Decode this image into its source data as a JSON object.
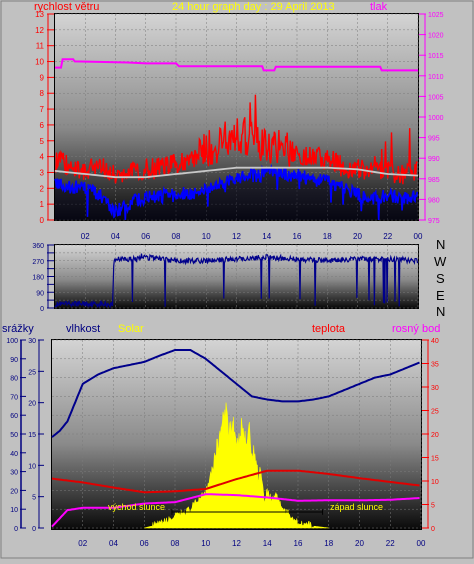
{
  "header": {
    "title": "24 hour graph day : 29 April 2013",
    "left_label": "rychlost větru",
    "right_label": "tlak"
  },
  "colors": {
    "wind_speed": "#ff0000",
    "wind_avg": "#c8c8c8",
    "wind_low": "#0000ff",
    "pressure": "#ff00ff",
    "direction": "#00008b",
    "humidity": "#00008b",
    "solar": "#ffff00",
    "temperature": "#e00000",
    "dew_point": "#ff00ff",
    "rain": "#000080",
    "title": "#ffff00"
  },
  "wind_direction_labels": [
    "N",
    "W",
    "S",
    "E",
    "N"
  ],
  "bottom_panel": {
    "labels": {
      "rain": "srážky",
      "humidity": "vlhkost",
      "solar": "Solar",
      "temperature": "teplota",
      "dew_point": "rosný bod"
    },
    "sunrise_label": "východ slunce",
    "sunset_label": "západ slunce"
  },
  "chart_data": [
    {
      "type": "line",
      "title": "24 hour graph day : 29 April 2013",
      "x_ticks": [
        "02",
        "04",
        "06",
        "08",
        "10",
        "12",
        "14",
        "16",
        "18",
        "20",
        "22",
        "00"
      ],
      "left_axis": {
        "label": "rychlost větru",
        "ticks": [
          0,
          1,
          2,
          3,
          4,
          5,
          6,
          7,
          8,
          9,
          10,
          11,
          12,
          13
        ],
        "ylim": [
          0,
          13
        ]
      },
      "right_axis": {
        "label": "tlak",
        "ticks": [
          975,
          980,
          985,
          990,
          995,
          1000,
          1005,
          1010,
          1015,
          1020,
          1025
        ],
        "ylim": [
          975,
          1025
        ]
      },
      "series": [
        {
          "name": "wind gust",
          "axis": "left",
          "hours": [
            0,
            1,
            2,
            3,
            4,
            5,
            6,
            7,
            8,
            9,
            10,
            11,
            12,
            13,
            14,
            15,
            16,
            17,
            18,
            19,
            20,
            21,
            22,
            23,
            24
          ],
          "values": [
            3.5,
            3.2,
            3.0,
            3.3,
            2.6,
            2.9,
            3.0,
            3.1,
            3.3,
            3.5,
            4.0,
            4.6,
            5.2,
            4.7,
            4.4,
            4.2,
            4.0,
            3.8,
            3.6,
            3.2,
            3.0,
            2.9,
            2.8,
            2.7,
            3.0
          ]
        },
        {
          "name": "wind average",
          "axis": "left",
          "hours": [
            0,
            2,
            4,
            6,
            8,
            10,
            12,
            14,
            16,
            18,
            20,
            22,
            24
          ],
          "values": [
            3.1,
            2.9,
            2.7,
            2.7,
            2.9,
            3.1,
            3.3,
            3.3,
            3.3,
            3.3,
            3.2,
            2.9,
            2.8
          ]
        },
        {
          "name": "wind low",
          "axis": "left",
          "hours": [
            0,
            1,
            2,
            3,
            4,
            5,
            6,
            7,
            8,
            9,
            10,
            11,
            12,
            13,
            14,
            15,
            16,
            17,
            18,
            19,
            20,
            21,
            22,
            23,
            24
          ],
          "values": [
            2.2,
            2.1,
            2.0,
            1.6,
            0.5,
            1.1,
            1.4,
            1.5,
            1.6,
            1.7,
            2.0,
            2.4,
            2.7,
            2.8,
            2.9,
            2.9,
            2.8,
            2.6,
            2.4,
            2.0,
            1.6,
            1.4,
            1.5,
            1.4,
            1.5
          ]
        },
        {
          "name": "pressure",
          "axis": "right",
          "hours": [
            0,
            0.4,
            0.5,
            1.2,
            1.3,
            5,
            6,
            8,
            8.2,
            13.7,
            13.8,
            14.5,
            14.6,
            21.5,
            21.6,
            24
          ],
          "values": [
            1012,
            1012,
            1014,
            1014,
            1013.5,
            1013.2,
            1013,
            1013,
            1012.3,
            1012.3,
            1011.3,
            1011.3,
            1012.2,
            1012.2,
            1011.3,
            1011.3
          ]
        }
      ]
    },
    {
      "type": "line",
      "title": "",
      "x_ticks": [
        "02",
        "04",
        "06",
        "08",
        "10",
        "12",
        "14",
        "16",
        "18",
        "20",
        "22",
        "00"
      ],
      "y_ticks": [
        0,
        45,
        90,
        135,
        180,
        225,
        270,
        315,
        360
      ],
      "ylim": [
        0,
        360
      ],
      "series": [
        {
          "name": "wind direction",
          "hours": [
            0,
            2,
            3.8,
            3.9,
            5.6,
            5.7,
            6,
            8,
            10,
            12,
            14,
            16,
            18,
            20,
            22,
            24
          ],
          "values": [
            20,
            25,
            20,
            280,
            280,
            300,
            290,
            270,
            270,
            280,
            290,
            280,
            270,
            280,
            280,
            270
          ]
        }
      ]
    },
    {
      "type": "line",
      "title": "",
      "x_ticks": [
        "02",
        "04",
        "06",
        "08",
        "10",
        "12",
        "14",
        "16",
        "18",
        "20",
        "22",
        "00"
      ],
      "rain_axis": {
        "label": "srážky",
        "ticks": [
          0,
          10,
          20,
          30,
          40,
          50,
          60,
          70,
          80,
          90,
          100
        ],
        "ylim": [
          0,
          100
        ]
      },
      "humidity_axis": {
        "label": "vlhkost",
        "ticks": [
          0,
          5,
          10,
          15,
          20,
          25,
          30
        ],
        "ylim": [
          0,
          30
        ]
      },
      "temperature_axis": {
        "label": "teplota",
        "ticks": [
          0,
          5,
          10,
          15,
          20,
          25,
          30,
          35,
          40
        ],
        "ylim": [
          0,
          40
        ]
      },
      "series": [
        {
          "name": "humidity",
          "axis": "humidity",
          "hours": [
            0,
            0.5,
            1,
            2,
            3,
            4,
            5,
            6,
            7,
            8,
            9,
            10,
            11,
            12,
            13,
            14,
            15,
            16,
            17,
            18,
            19,
            20,
            21,
            22,
            23,
            24
          ],
          "values": [
            14.5,
            15.5,
            17,
            23,
            24.5,
            25.5,
            26,
            26.5,
            27.5,
            28.4,
            28.4,
            27,
            25,
            23,
            21,
            20.5,
            20.2,
            20.2,
            20.5,
            21,
            22,
            23,
            24,
            24.5,
            25.5,
            26.5
          ]
        },
        {
          "name": "temperature",
          "axis": "temperature",
          "hours": [
            0,
            2,
            4,
            6,
            8,
            10,
            12,
            14,
            16,
            18,
            20,
            22,
            24
          ],
          "values": [
            10.5,
            9.7,
            8.6,
            7.6,
            7.8,
            8.3,
            10.4,
            12.2,
            12.2,
            11.5,
            10.6,
            9.8,
            9.0
          ]
        },
        {
          "name": "dew point",
          "axis": "temperature",
          "hours": [
            0,
            1,
            2,
            4,
            6,
            8,
            10,
            12,
            14,
            16,
            18,
            20,
            22,
            24
          ],
          "values": [
            0.3,
            3.8,
            4.3,
            4.3,
            5.2,
            5.5,
            7.2,
            7.0,
            6.5,
            5.8,
            5.9,
            5.9,
            6.0,
            6.4
          ]
        },
        {
          "name": "solar",
          "axis": "rain",
          "hours": [
            6,
            7,
            8,
            9,
            10,
            10.5,
            11,
            11.3,
            11.6,
            11.8,
            12,
            12.2,
            12.4,
            12.6,
            12.8,
            13,
            13.2,
            13.4,
            13.6,
            13.8,
            14,
            14.3,
            14.6,
            15,
            15.3,
            15.6,
            16,
            16.5,
            17,
            18
          ],
          "values": [
            0,
            2,
            6,
            10,
            20,
            34,
            53,
            60,
            54,
            56,
            40,
            48,
            55,
            44,
            53,
            40,
            40,
            28,
            32,
            14,
            20,
            15,
            18,
            10,
            8,
            6,
            3,
            2,
            1,
            0
          ]
        }
      ]
    }
  ]
}
